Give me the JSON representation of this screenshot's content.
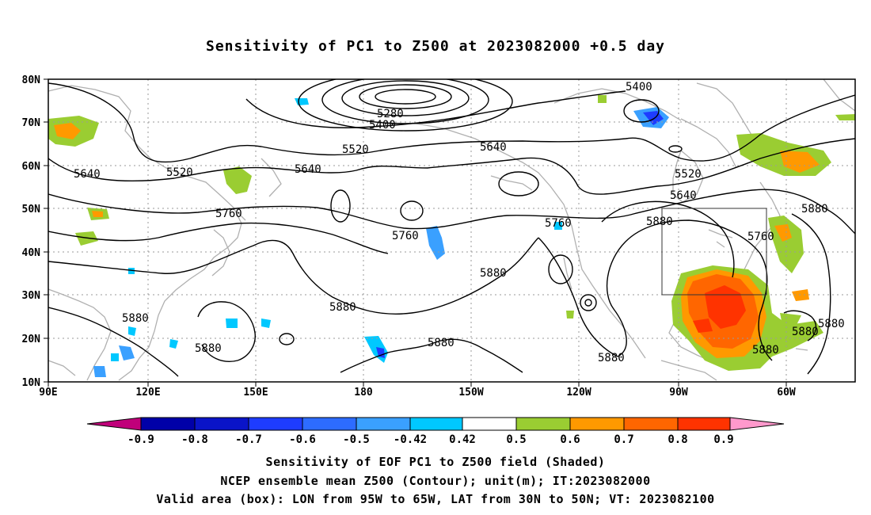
{
  "title": "Sensitivity of PC1 to Z500 at 2023082000 +0.5 day",
  "map": {
    "lat_labels": [
      "80N",
      "70N",
      "60N",
      "50N",
      "40N",
      "30N",
      "20N",
      "10N"
    ],
    "lon_labels": [
      "90E",
      "120E",
      "150E",
      "180",
      "150W",
      "120W",
      "90W",
      "60W"
    ],
    "contour_labels": [
      "5400",
      "5280",
      "5400",
      "5520",
      "5640",
      "5520",
      "5640",
      "5640",
      "5520",
      "5640",
      "5760",
      "5760",
      "5760",
      "5880",
      "5760",
      "5880",
      "5880",
      "5880",
      "5880",
      "5880",
      "5880",
      "5880",
      "5880",
      "5880",
      "5880",
      "5880"
    ],
    "valid_box": {
      "lon_from": "95W",
      "lon_to": "65W",
      "lat_from": "30N",
      "lat_to": "50N"
    }
  },
  "colorbar": {
    "labels": [
      "-0.9",
      "-0.8",
      "-0.7",
      "-0.6",
      "-0.5",
      "-0.42",
      "0.42",
      "0.5",
      "0.6",
      "0.7",
      "0.8",
      "0.9"
    ],
    "colors": [
      "#c0007a",
      "#0000a8",
      "#0a14c8",
      "#1e3cff",
      "#2d6cff",
      "#3aa0ff",
      "#00c8ff",
      "#ffffff",
      "#9acd32",
      "#ff9900",
      "#ff6600",
      "#ff3300",
      "#ff0000",
      "#ff99cc"
    ]
  },
  "captions": {
    "line1": "Sensitivity of EOF PC1 to Z500 field (Shaded)",
    "line2": "NCEP ensemble mean Z500 (Contour); unit(m); IT:2023082000",
    "line3": "Valid area (box): LON from 95W to 65W, LAT from 30N to 50N; VT: 2023082100"
  }
}
